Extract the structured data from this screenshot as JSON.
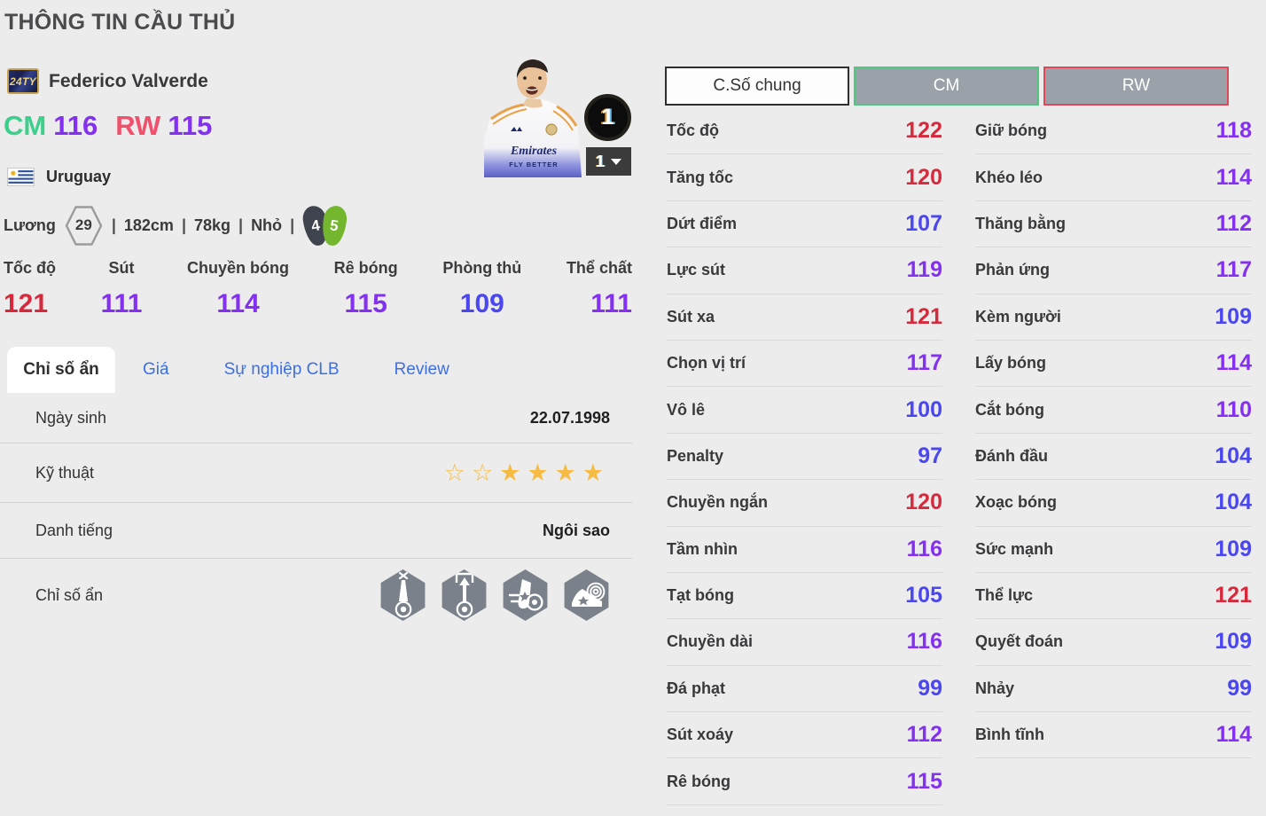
{
  "title": "THÔNG TIN CẦU THỦ",
  "player": {
    "season_badge": "24TY",
    "name": "Federico Valverde",
    "pos1": {
      "code": "CM",
      "rating": "116"
    },
    "pos2": {
      "code": "RW",
      "rating": "115"
    },
    "nation": "Uruguay",
    "salary_label": "Lương",
    "salary": "29",
    "sep": "|",
    "height": "182cm",
    "weight": "78kg",
    "body_type": "Nhỏ",
    "weak_foot": "4",
    "strong_foot": "5",
    "upgrade_level": "1",
    "level_select": "1",
    "jersey_sponsor": "Emirates",
    "jersey_slogan": "FLY BETTER"
  },
  "main_stats": [
    {
      "label": "Tốc độ",
      "value": "121"
    },
    {
      "label": "Sút",
      "value": "111"
    },
    {
      "label": "Chuyền bóng",
      "value": "114"
    },
    {
      "label": "Rê bóng",
      "value": "115"
    },
    {
      "label": "Phòng thủ",
      "value": "109"
    },
    {
      "label": "Thể chất",
      "value": "111"
    }
  ],
  "tabs": [
    {
      "label": "Chỉ số ẩn",
      "active": true
    },
    {
      "label": "Giá",
      "active": false
    },
    {
      "label": "Sự nghiệp CLB",
      "active": false
    },
    {
      "label": "Review",
      "active": false
    }
  ],
  "info": {
    "birth": {
      "label": "Ngày sinh",
      "value": "22.07.1998"
    },
    "skill": {
      "label": "Kỹ thuật",
      "stars_empty": 2,
      "stars_filled": 4
    },
    "fame": {
      "label": "Danh tiếng",
      "value": "Ngôi sao"
    },
    "hidden": {
      "label": "Chỉ số ẩn",
      "trait_icons": [
        "ball-beam-cross-icon",
        "ball-arrow-goal-icon",
        "boot-kick-ball-icon",
        "boot-target-icon"
      ]
    }
  },
  "detail": {
    "buttons": [
      {
        "label": "C.Số chung"
      },
      {
        "label": "CM"
      },
      {
        "label": "RW"
      }
    ],
    "left": [
      {
        "label": "Tốc độ",
        "value": "122"
      },
      {
        "label": "Tăng tốc",
        "value": "120"
      },
      {
        "label": "Dứt điểm",
        "value": "107"
      },
      {
        "label": "Lực sút",
        "value": "119"
      },
      {
        "label": "Sút xa",
        "value": "121"
      },
      {
        "label": "Chọn vị trí",
        "value": "117"
      },
      {
        "label": "Vô lê",
        "value": "100"
      },
      {
        "label": "Penalty",
        "value": "97"
      },
      {
        "label": "Chuyền ngắn",
        "value": "120"
      },
      {
        "label": "Tầm nhìn",
        "value": "116"
      },
      {
        "label": "Tạt bóng",
        "value": "105"
      },
      {
        "label": "Chuyền dài",
        "value": "116"
      },
      {
        "label": "Đá phạt",
        "value": "99"
      },
      {
        "label": "Sút xoáy",
        "value": "112"
      },
      {
        "label": "Rê bóng",
        "value": "115"
      }
    ],
    "right": [
      {
        "label": "Giữ bóng",
        "value": "118"
      },
      {
        "label": "Khéo léo",
        "value": "114"
      },
      {
        "label": "Thăng bằng",
        "value": "112"
      },
      {
        "label": "Phản ứng",
        "value": "117"
      },
      {
        "label": "Kèm người",
        "value": "109"
      },
      {
        "label": "Lấy bóng",
        "value": "114"
      },
      {
        "label": "Cắt bóng",
        "value": "110"
      },
      {
        "label": "Đánh đầu",
        "value": "104"
      },
      {
        "label": "Xoạc bóng",
        "value": "104"
      },
      {
        "label": "Sức mạnh",
        "value": "109"
      },
      {
        "label": "Thể lực",
        "value": "121"
      },
      {
        "label": "Quyết đoán",
        "value": "109"
      },
      {
        "label": "Nhảy",
        "value": "99"
      },
      {
        "label": "Bình tĩnh",
        "value": "114"
      }
    ]
  },
  "colors": {
    "stat_red": "#d6293c",
    "stat_purple": "#8430f0",
    "stat_blue": "#4a46f0",
    "pos_cm_green": "#3ecf8c",
    "pos_rw_red": "#f0506b",
    "tab_blue": "#3c6fe3",
    "star_gold": "#f5bb42",
    "trait_gray": "#7b818a",
    "foot_dark": "#3e434d",
    "foot_green": "#74b62e"
  }
}
